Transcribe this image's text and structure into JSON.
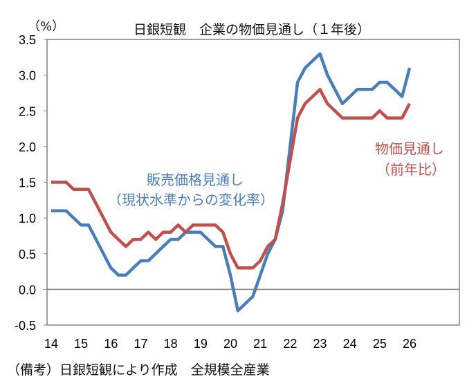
{
  "chart_data": {
    "type": "line",
    "title": "日銀短観　企業の物価見通し（１年後）",
    "ylabel": "（%）",
    "ylim": [
      -0.5,
      3.5
    ],
    "yticks": [
      "3.5",
      "3.0",
      "2.5",
      "2.0",
      "1.5",
      "1.0",
      "0.5",
      "0.0",
      "-0.5"
    ],
    "ytick_values": [
      3.5,
      3.0,
      2.5,
      2.0,
      1.5,
      1.0,
      0.5,
      0.0,
      -0.5
    ],
    "xticks": [
      "14",
      "15",
      "16",
      "17",
      "18",
      "19",
      "20",
      "21",
      "22",
      "23",
      "24",
      "25",
      "26"
    ],
    "x_start": "2014 Q1",
    "x_frequency": "quarterly",
    "grid": false,
    "series": [
      {
        "name": "販売価格見通し（現状水準からの変化率）",
        "color": "#4a7ebb",
        "values": [
          1.1,
          1.1,
          1.1,
          1.0,
          0.9,
          0.9,
          0.7,
          0.5,
          0.3,
          0.2,
          0.2,
          0.3,
          0.4,
          0.4,
          0.5,
          0.6,
          0.7,
          0.7,
          0.8,
          0.8,
          0.8,
          0.7,
          0.6,
          0.6,
          0.2,
          -0.3,
          -0.2,
          -0.1,
          0.2,
          0.5,
          0.7,
          1.1,
          2.0,
          2.9,
          3.1,
          3.2,
          3.3,
          3.0,
          2.8,
          2.6,
          2.7,
          2.8,
          2.8,
          2.8,
          2.9,
          2.9,
          2.8,
          2.7,
          3.1
        ]
      },
      {
        "name": "物価見通し（前年比）",
        "color": "#c0504d",
        "values": [
          1.5,
          1.5,
          1.5,
          1.4,
          1.4,
          1.4,
          1.2,
          1.0,
          0.8,
          0.7,
          0.6,
          0.7,
          0.7,
          0.8,
          0.7,
          0.8,
          0.8,
          0.9,
          0.8,
          0.9,
          0.9,
          0.9,
          0.9,
          0.8,
          0.5,
          0.3,
          0.3,
          0.3,
          0.4,
          0.6,
          0.7,
          1.2,
          1.8,
          2.4,
          2.6,
          2.7,
          2.8,
          2.6,
          2.5,
          2.4,
          2.4,
          2.4,
          2.4,
          2.4,
          2.5,
          2.4,
          2.4,
          2.4,
          2.6
        ]
      }
    ],
    "annotations": {
      "blue_line1": "販売価格見通し",
      "blue_line2": "（現状水準からの変化率）",
      "red_line1": "物価見通し",
      "red_line2": "（前年比）"
    }
  },
  "footer": "（備考）日銀短観により作成　全規模全産業"
}
